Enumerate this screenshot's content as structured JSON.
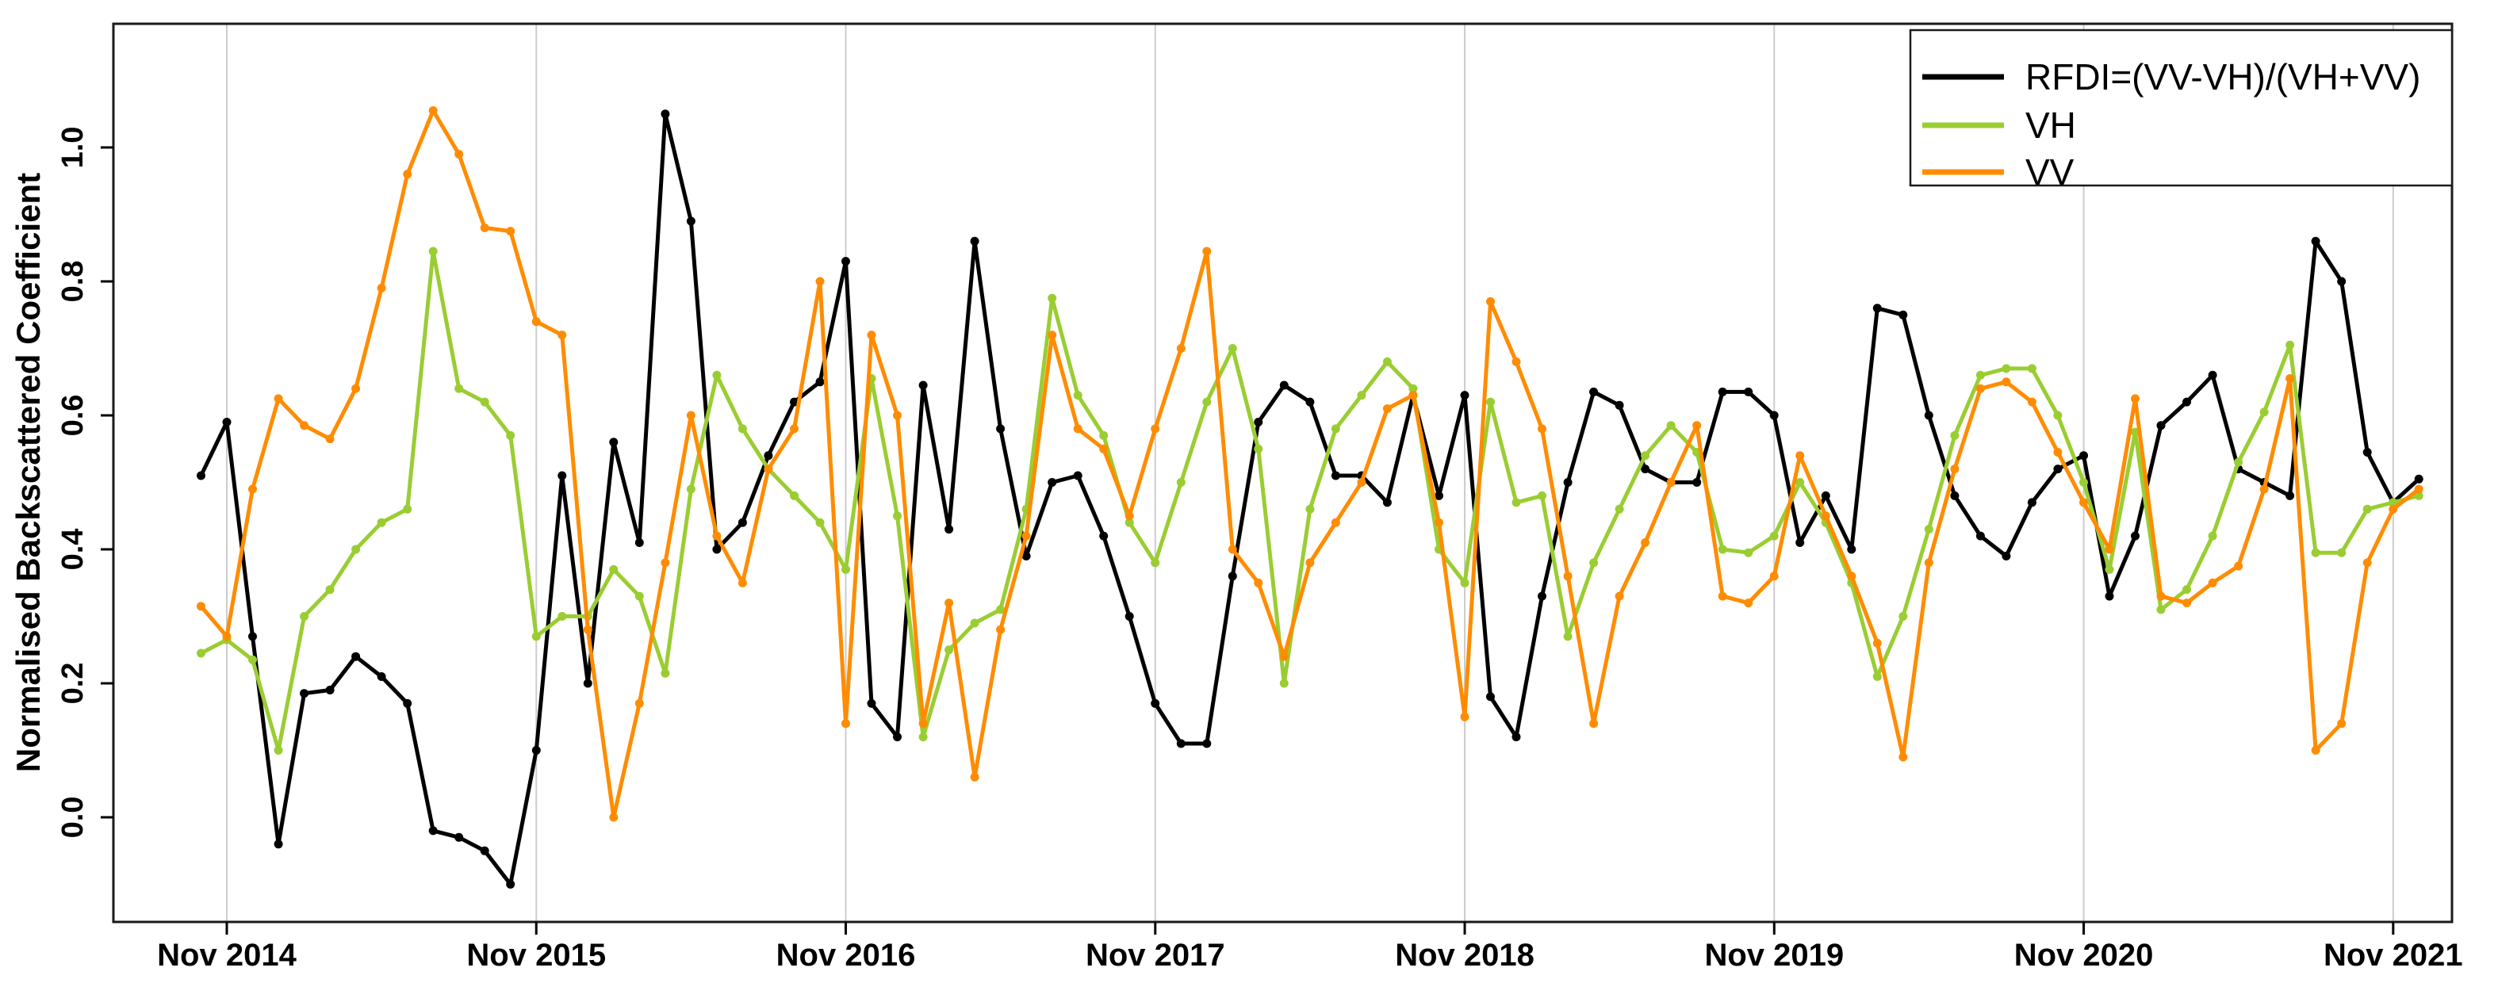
{
  "y_axis": {
    "title": "Normalised Backscattered Coefficient",
    "tick_labels": [
      "0.0",
      "0.2",
      "0.4",
      "0.6",
      "0.8",
      "1.0"
    ],
    "tick_values": [
      0.0,
      0.2,
      0.4,
      0.6,
      0.8,
      1.0
    ]
  },
  "x_axis": {
    "tick_labels": [
      "Nov 2014",
      "Nov 2015",
      "Nov 2016",
      "Nov 2017",
      "Nov 2018",
      "Nov 2019",
      "Nov 2020",
      "Nov 2021"
    ]
  },
  "legend": {
    "items": [
      {
        "label": "RFDI=(VV-VH)/(VH+VV)",
        "color": "#000000"
      },
      {
        "label": "VH",
        "color": "#9ACD32"
      },
      {
        "label": "VV",
        "color": "#FF8C00"
      }
    ]
  },
  "colors": {
    "rfdi": "#000000",
    "vh": "#9ACD32",
    "vv": "#FF8C00",
    "gridline": "#cccccc",
    "frame": "#1a1a1a"
  },
  "chart_data": {
    "type": "line",
    "title": "",
    "xlabel": "",
    "ylabel": "Normalised Backscattered Coefficient",
    "ylim": [
      -0.156,
      1.185
    ],
    "grid": "vertical-only",
    "legend_position": "top-right",
    "x_start": "Oct 2014",
    "x_interval": "monthly",
    "n_points": 87,
    "x_tick_labels": [
      "Nov 2014",
      "Nov 2015",
      "Nov 2016",
      "Nov 2017",
      "Nov 2018",
      "Nov 2019",
      "Nov 2020",
      "Nov 2021"
    ],
    "series": [
      {
        "name": "RFDI=(VV-VH)/(VH+VV)",
        "color": "#000000",
        "values": [
          0.51,
          0.59,
          0.27,
          -0.04,
          0.185,
          0.19,
          0.24,
          0.21,
          0.17,
          -0.02,
          -0.03,
          -0.05,
          -0.1,
          0.1,
          0.51,
          0.2,
          0.56,
          0.41,
          1.05,
          0.89,
          0.4,
          0.44,
          0.54,
          0.62,
          0.65,
          0.83,
          0.17,
          0.12,
          0.645,
          0.43,
          0.86,
          0.58,
          0.39,
          0.5,
          0.51,
          0.42,
          0.3,
          0.17,
          0.11,
          0.11,
          0.36,
          0.59,
          0.645,
          0.62,
          0.51,
          0.51,
          0.47,
          0.63,
          0.48,
          0.63,
          0.18,
          0.12,
          0.33,
          0.5,
          0.635,
          0.615,
          0.52,
          0.5,
          0.5,
          0.635,
          0.635,
          0.6,
          0.41,
          0.48,
          0.4,
          0.76,
          0.75,
          0.6,
          0.48,
          0.42,
          0.39,
          0.47,
          0.52,
          0.54,
          0.33,
          0.42,
          0.585,
          0.62,
          0.66,
          0.52,
          0.5,
          0.48,
          0.86,
          0.8,
          0.545,
          0.47,
          0.505
        ]
      },
      {
        "name": "VH",
        "color": "#9ACD32",
        "values": [
          0.245,
          0.265,
          0.235,
          0.1,
          0.3,
          0.34,
          0.4,
          0.44,
          0.46,
          0.845,
          0.64,
          0.62,
          0.57,
          0.27,
          0.3,
          0.3,
          0.37,
          0.33,
          0.215,
          0.49,
          0.66,
          0.58,
          0.52,
          0.48,
          0.44,
          0.37,
          0.655,
          0.45,
          0.12,
          0.25,
          0.29,
          0.31,
          0.46,
          0.775,
          0.63,
          0.57,
          0.44,
          0.38,
          0.5,
          0.62,
          0.7,
          0.55,
          0.2,
          0.46,
          0.58,
          0.63,
          0.68,
          0.64,
          0.4,
          0.35,
          0.62,
          0.47,
          0.48,
          0.27,
          0.38,
          0.46,
          0.54,
          0.585,
          0.545,
          0.4,
          0.395,
          0.42,
          0.5,
          0.44,
          0.35,
          0.21,
          0.3,
          0.43,
          0.57,
          0.66,
          0.67,
          0.67,
          0.6,
          0.5,
          0.37,
          0.575,
          0.31,
          0.34,
          0.42,
          0.53,
          0.605,
          0.705,
          0.395,
          0.395,
          0.46,
          0.47,
          0.48
        ]
      },
      {
        "name": "VV",
        "color": "#FF8C00",
        "values": [
          0.315,
          0.27,
          0.49,
          0.625,
          0.585,
          0.565,
          0.64,
          0.79,
          0.96,
          1.055,
          0.99,
          0.88,
          0.875,
          0.74,
          0.72,
          0.28,
          0.0,
          0.17,
          0.38,
          0.6,
          0.42,
          0.35,
          0.52,
          0.58,
          0.8,
          0.14,
          0.72,
          0.6,
          0.14,
          0.32,
          0.06,
          0.28,
          0.42,
          0.72,
          0.58,
          0.55,
          0.45,
          0.58,
          0.7,
          0.845,
          0.4,
          0.35,
          0.24,
          0.38,
          0.44,
          0.5,
          0.61,
          0.63,
          0.44,
          0.15,
          0.77,
          0.68,
          0.58,
          0.36,
          0.14,
          0.33,
          0.41,
          0.5,
          0.585,
          0.33,
          0.32,
          0.36,
          0.54,
          0.45,
          0.36,
          0.26,
          0.09,
          0.38,
          0.52,
          0.64,
          0.65,
          0.62,
          0.545,
          0.47,
          0.4,
          0.625,
          0.33,
          0.32,
          0.35,
          0.375,
          0.49,
          0.655,
          0.1,
          0.14,
          0.38,
          0.46,
          0.49
        ]
      }
    ]
  }
}
